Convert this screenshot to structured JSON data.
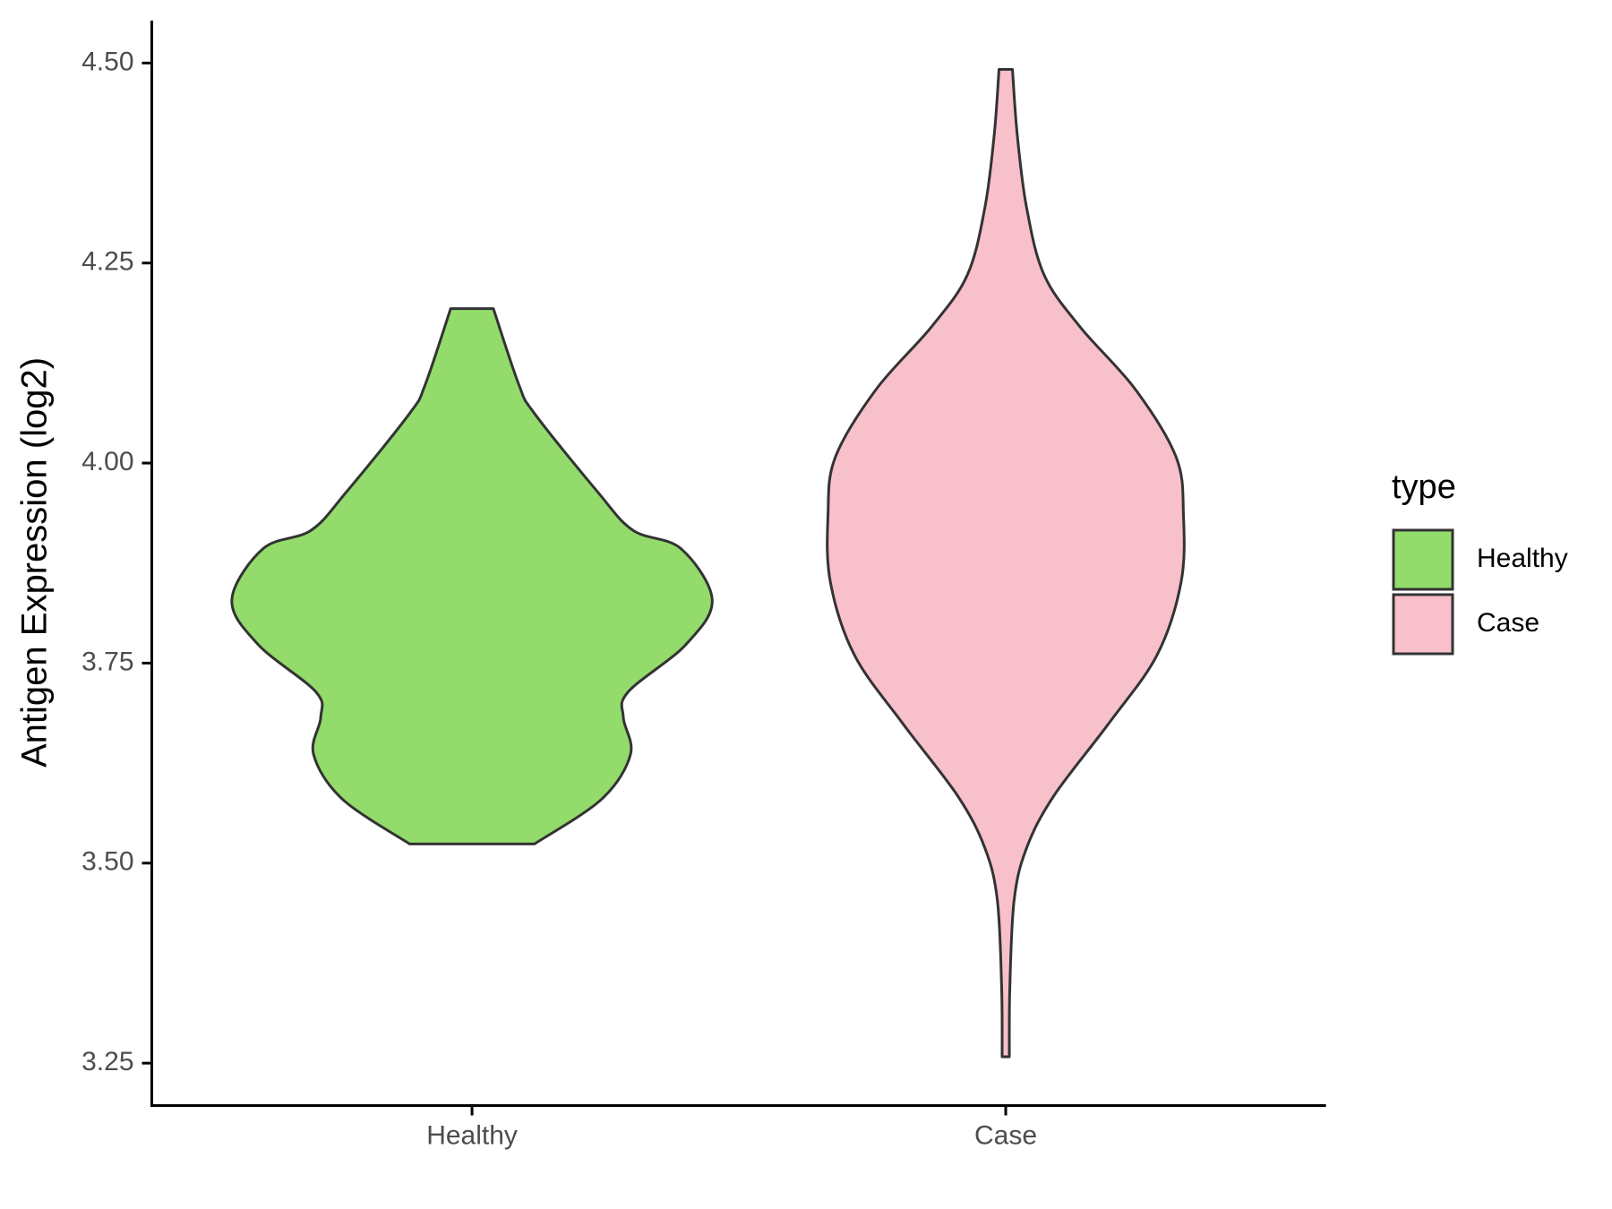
{
  "chart_data": {
    "type": "violin",
    "y_label": "Antigen Expression (log2)",
    "categories": [
      "Healthy",
      "Case"
    ],
    "legend_title": "type",
    "series": [
      {
        "name": "Healthy",
        "color": "#93dc6b",
        "y": [
          4.193,
          4.098,
          4.062,
          3.965,
          3.916,
          3.893,
          3.829,
          3.773,
          3.714,
          3.682,
          3.636,
          3.58,
          3.524
        ],
        "density": [
          0.089,
          0.195,
          0.26,
          0.52,
          0.67,
          0.87,
          1.0,
          0.89,
          0.65,
          0.63,
          0.66,
          0.54,
          0.26
        ]
      },
      {
        "name": "Case",
        "color": "#f8c0cb",
        "y": [
          4.492,
          4.41,
          4.319,
          4.235,
          4.17,
          4.092,
          4.007,
          3.935,
          3.851,
          3.76,
          3.675,
          3.584,
          3.519,
          3.454,
          3.344,
          3.258
        ],
        "density": [
          0.028,
          0.048,
          0.087,
          0.16,
          0.31,
          0.54,
          0.71,
          0.74,
          0.73,
          0.63,
          0.43,
          0.2,
          0.087,
          0.035,
          0.017,
          0.015
        ]
      }
    ],
    "ylim": [
      3.197,
      4.553
    ],
    "yticks": [
      {
        "value": 3.25,
        "label": "3.25"
      },
      {
        "value": 3.5,
        "label": "3.50"
      },
      {
        "value": 3.75,
        "label": "3.75"
      },
      {
        "value": 4.0,
        "label": "4.00"
      },
      {
        "value": 4.25,
        "label": "4.25"
      },
      {
        "value": 4.5,
        "label": "4.50"
      }
    ],
    "grid": false,
    "legend": "right"
  }
}
